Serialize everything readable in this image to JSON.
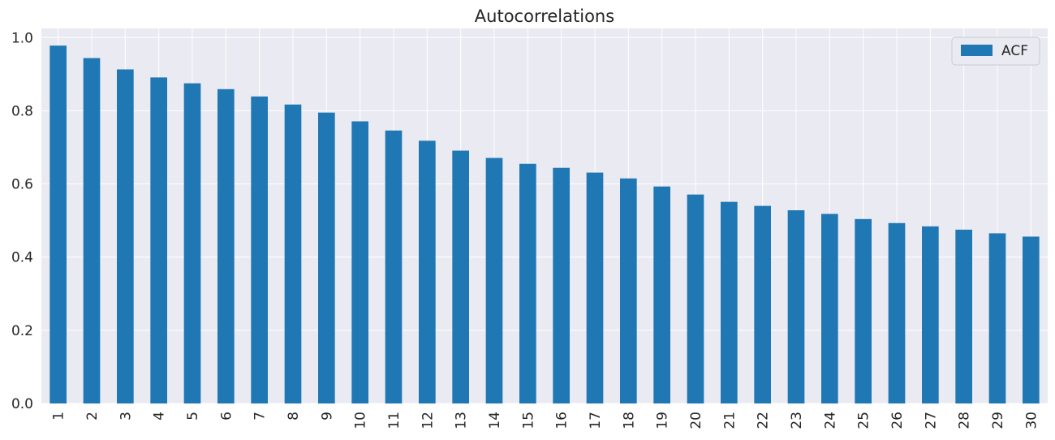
{
  "chart_data": {
    "type": "bar",
    "title": "Autocorrelations",
    "xlabel": "",
    "ylabel": "",
    "categories": [
      "1",
      "2",
      "3",
      "4",
      "5",
      "6",
      "7",
      "8",
      "9",
      "10",
      "11",
      "12",
      "13",
      "14",
      "15",
      "16",
      "17",
      "18",
      "19",
      "20",
      "21",
      "22",
      "23",
      "24",
      "25",
      "26",
      "27",
      "28",
      "29",
      "30"
    ],
    "series": [
      {
        "name": "ACF",
        "values": [
          0.978,
          0.944,
          0.913,
          0.891,
          0.875,
          0.859,
          0.839,
          0.817,
          0.795,
          0.771,
          0.746,
          0.718,
          0.691,
          0.671,
          0.655,
          0.644,
          0.631,
          0.615,
          0.593,
          0.571,
          0.551,
          0.54,
          0.528,
          0.518,
          0.504,
          0.493,
          0.484,
          0.475,
          0.465,
          0.456
        ]
      }
    ],
    "ylim": [
      0,
      1.025
    ],
    "yticks": [
      "0.0",
      "0.2",
      "0.4",
      "0.6",
      "0.8",
      "1.0"
    ],
    "grid": true,
    "legend": "top-right",
    "colors": {
      "bar": "#1f77b4",
      "background": "#eaeaf2",
      "grid": "#ffffff",
      "text": "#262626"
    }
  }
}
